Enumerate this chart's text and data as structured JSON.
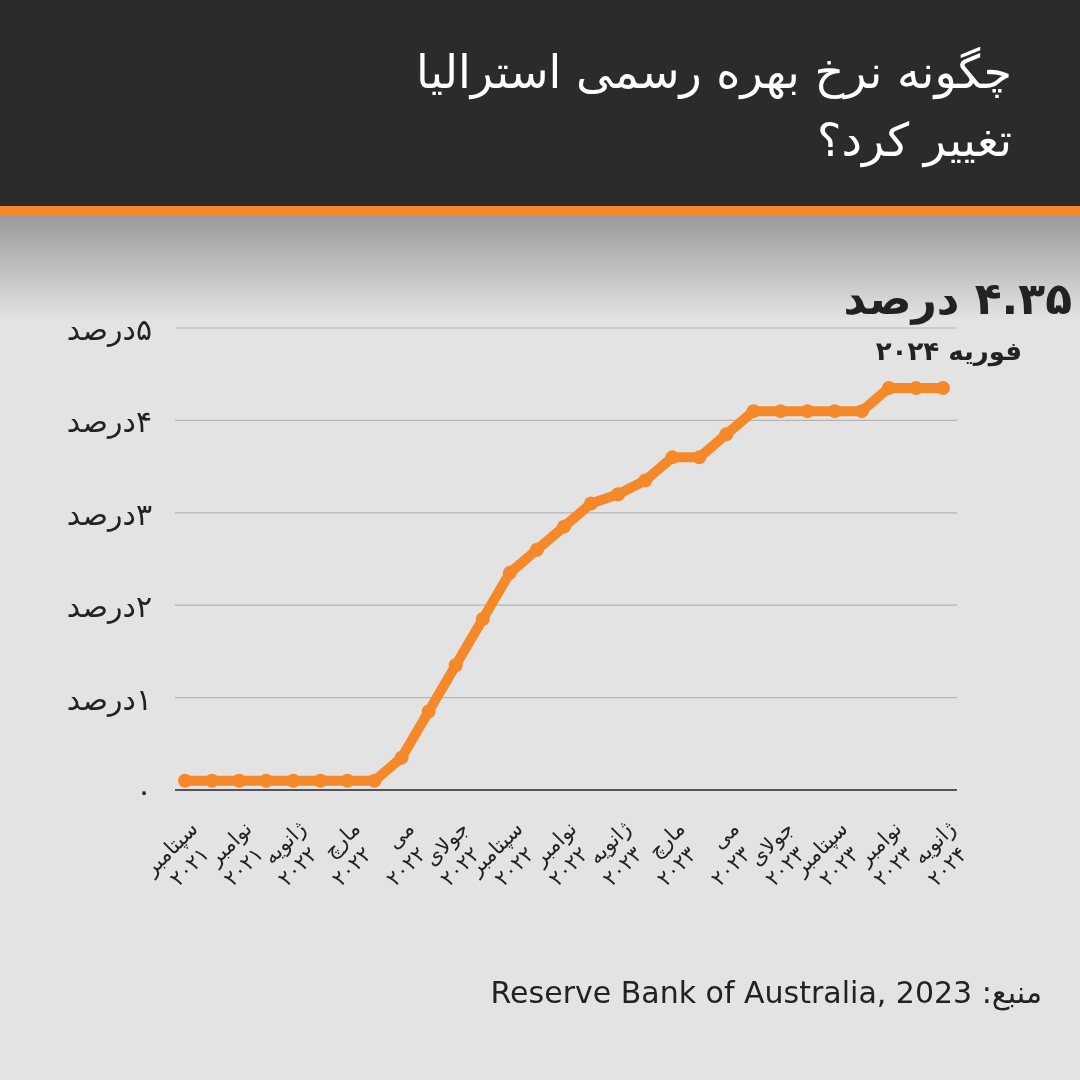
{
  "chart_data": {
    "type": "line",
    "title": "چگونه نرخ بهره رسمی استرالیا تغییر کرد؟",
    "categories": [
      "سپتامبر ۲۰۲۱",
      null,
      "نوامبر ۲۰۲۱",
      null,
      "ژانویه ۲۰۲۲",
      null,
      "مارچ ۲۰۲۲",
      null,
      "می ۲۰۲۲",
      null,
      "جولای ۲۰۲۲",
      null,
      "سپتامبر ۲۰۲۲",
      null,
      "نوامبر ۲۰۲۲",
      null,
      "ژانویه ۲۰۲۳",
      null,
      "مارچ ۲۰۲۳",
      null,
      "می ۲۰۲۳",
      null,
      "جولای ۲۰۲۳",
      null,
      "سپتامبر ۲۰۲۳",
      null,
      "نوامبر ۲۰۲۳",
      null,
      "ژانویه ۲۰۲۴"
    ],
    "series": [
      {
        "color": "#f5892a",
        "values": [
          0.1,
          0.1,
          0.1,
          0.1,
          0.1,
          0.1,
          0.1,
          0.1,
          0.35,
          0.85,
          1.35,
          1.85,
          2.35,
          2.6,
          2.85,
          3.1,
          3.2,
          3.35,
          3.6,
          3.6,
          3.85,
          4.1,
          4.1,
          4.1,
          4.1,
          4.1,
          4.35,
          4.35,
          4.35
        ]
      }
    ],
    "ylim": [
      0,
      5
    ],
    "yticks": [
      {
        "value": 0,
        "label": "۰"
      },
      {
        "value": 1,
        "label": "۱درصد"
      },
      {
        "value": 2,
        "label": "۲درصد"
      },
      {
        "value": 3,
        "label": "۳درصد"
      },
      {
        "value": 4,
        "label": "۴درصد"
      },
      {
        "value": 5,
        "label": "۵درصد"
      }
    ],
    "grid": "y",
    "marker": "circle",
    "annotations": [
      "۴.۳۵ درصد",
      "فوریه ۲۰۲۴",
      "منبع: Reserve Bank of Australia, 2023"
    ]
  }
}
